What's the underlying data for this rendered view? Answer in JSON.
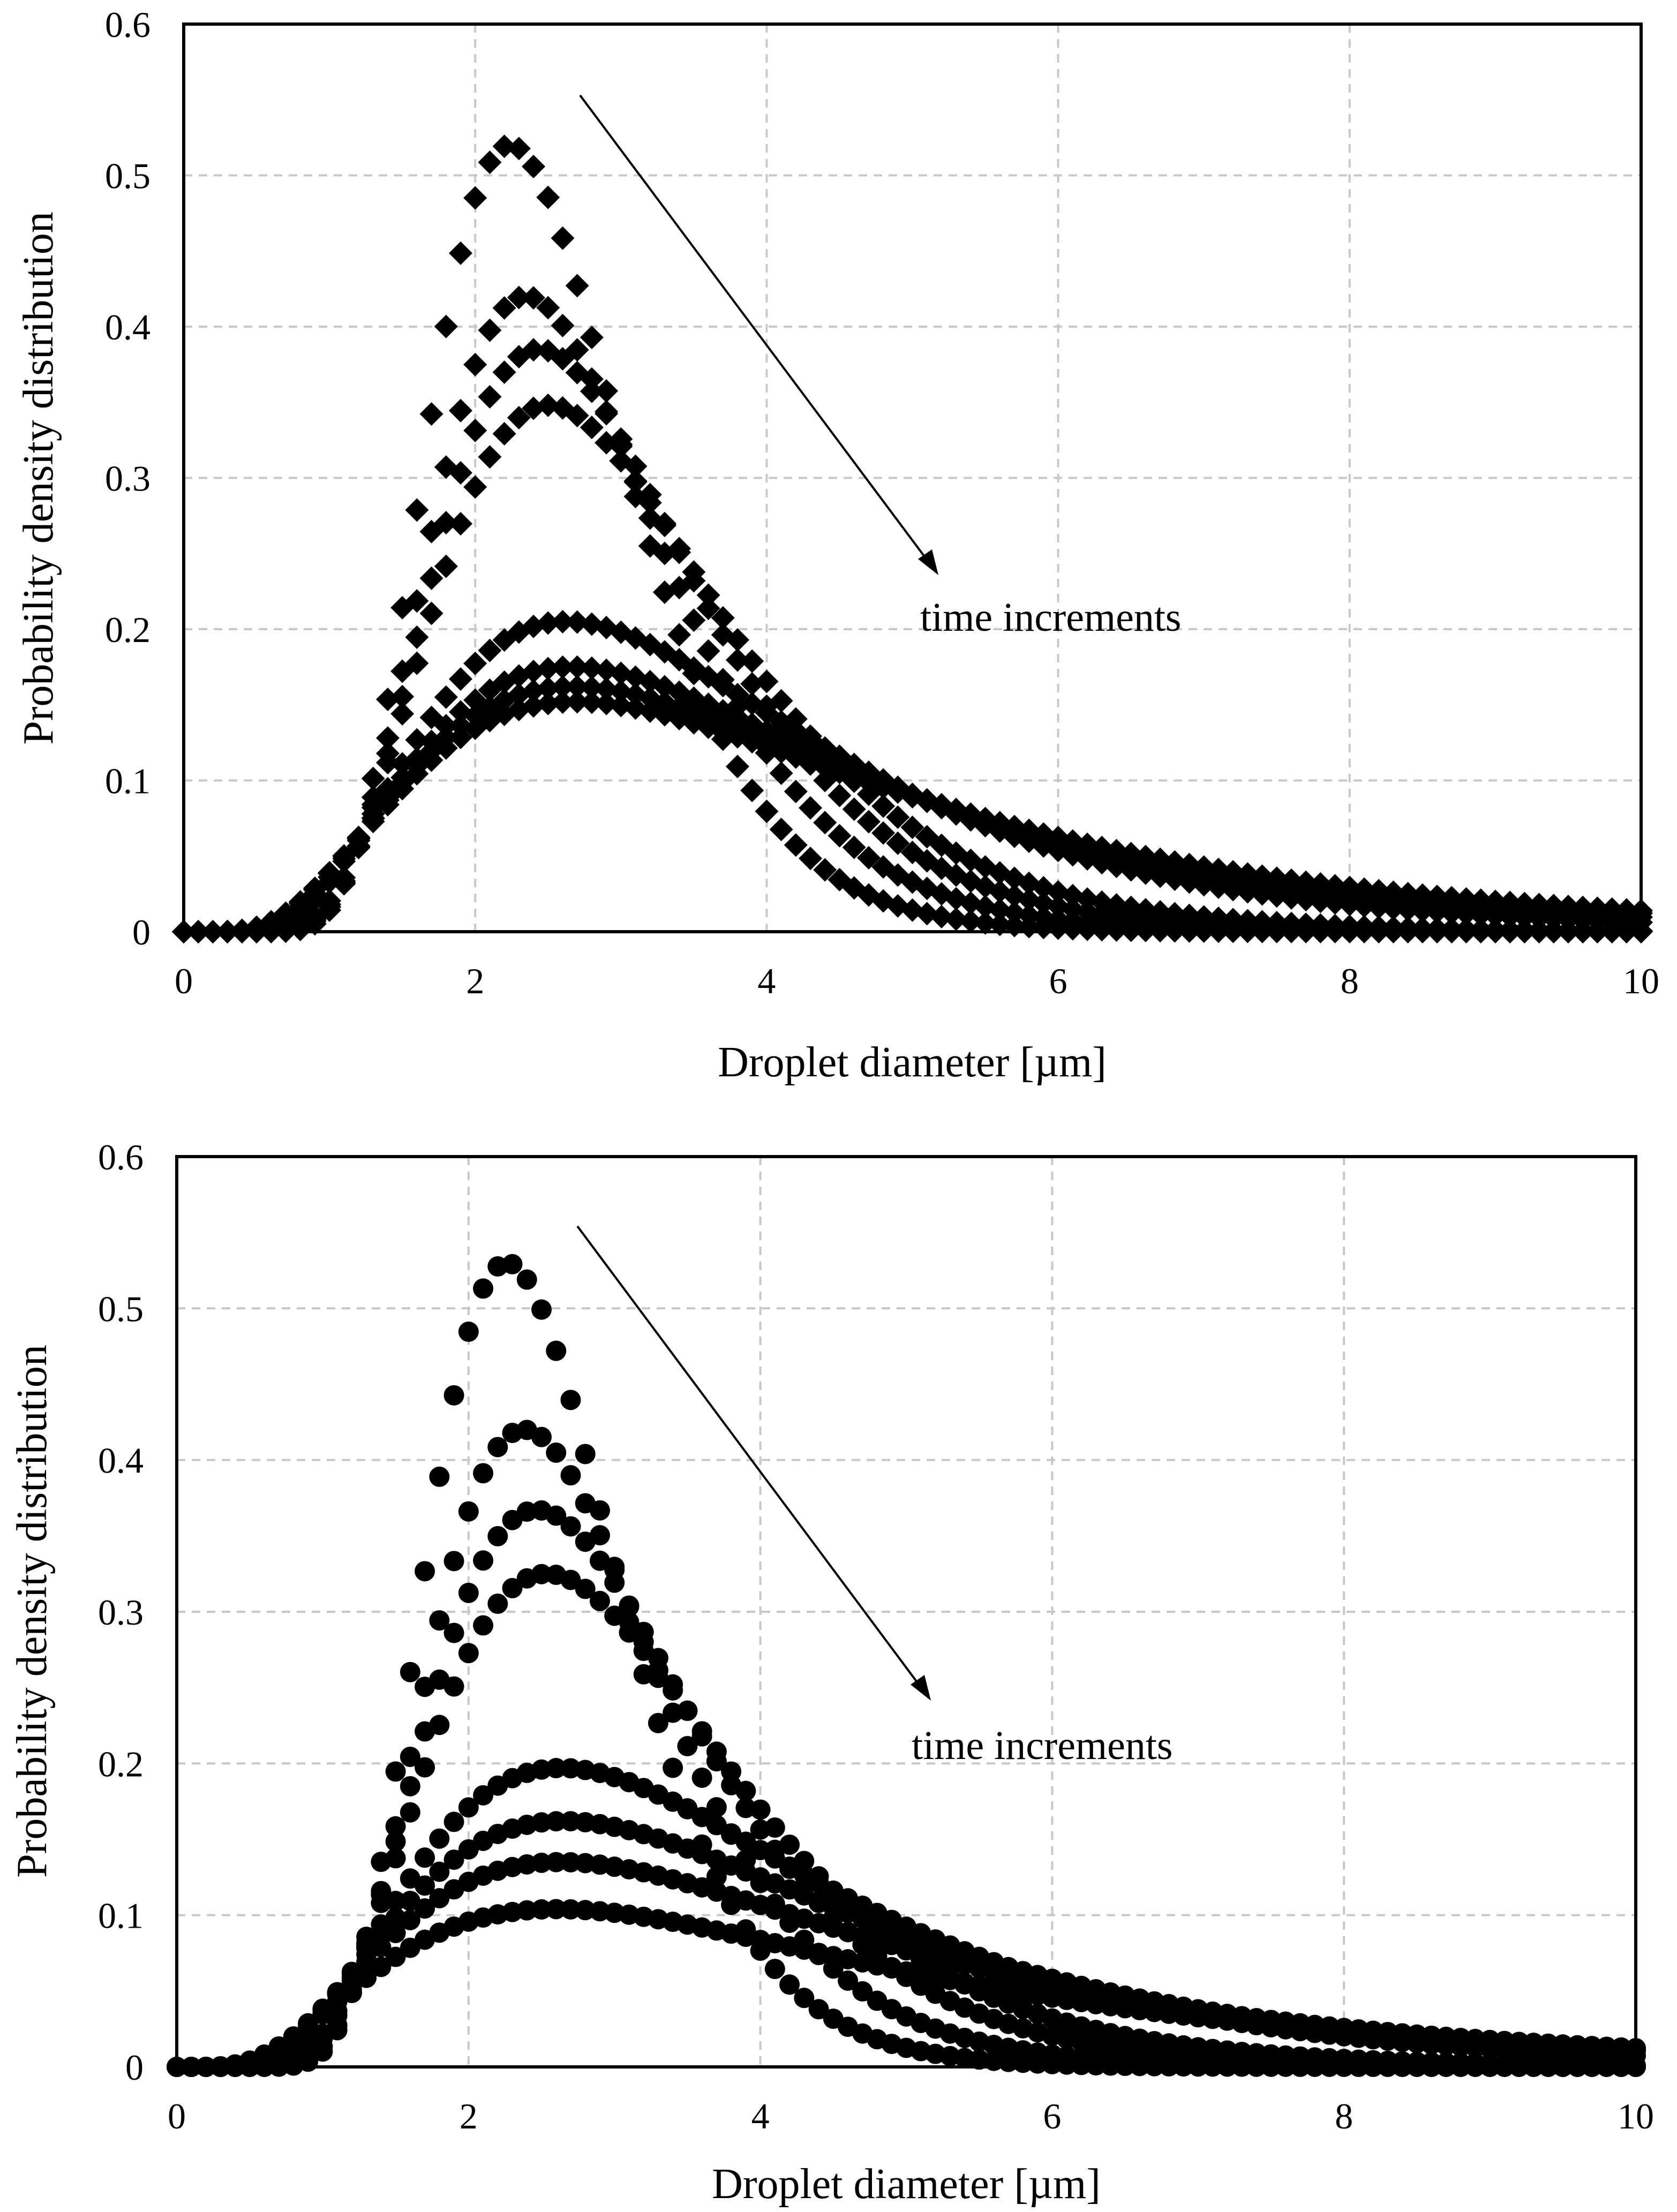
{
  "chart_data": [
    {
      "type": "scatter",
      "marker": "diamond",
      "xlabel": "Droplet diameter [µm]",
      "ylabel": "Probability density distribution",
      "xlim": [
        0,
        10
      ],
      "ylim": [
        0,
        0.6
      ],
      "xticks": [
        "0",
        "2",
        "4",
        "6",
        "8",
        "10"
      ],
      "yticks": [
        "0",
        "0.1",
        "0.2",
        "0.3",
        "0.4",
        "0.5",
        "0.6"
      ],
      "grid": true,
      "annotation": "time increments",
      "series_shape": [
        {
          "mu": 0.895,
          "sigma": 0.3,
          "peak": 0.52
        },
        {
          "mu": 0.965,
          "sigma": 0.335,
          "peak": 0.42
        },
        {
          "mu": 1.02,
          "sigma": 0.36,
          "peak": 0.385
        },
        {
          "mu": 1.065,
          "sigma": 0.385,
          "peak": 0.348
        },
        {
          "mu": 1.22,
          "sigma": 0.505,
          "peak": 0.205
        },
        {
          "mu": 1.28,
          "sigma": 0.55,
          "peak": 0.175
        },
        {
          "mu": 1.32,
          "sigma": 0.58,
          "peak": 0.162
        },
        {
          "mu": 1.35,
          "sigma": 0.6,
          "peak": 0.152
        }
      ]
    },
    {
      "type": "scatter",
      "marker": "circle",
      "xlabel": "Droplet diameter [µm]",
      "ylabel": "Probability density distribution",
      "xlim": [
        0,
        10
      ],
      "ylim": [
        0,
        0.6
      ],
      "xticks": [
        "0",
        "2",
        "4",
        "6",
        "8",
        "10"
      ],
      "yticks": [
        "0",
        "0.1",
        "0.2",
        "0.3",
        "0.4",
        "0.5",
        "0.6"
      ],
      "grid": true,
      "annotation": "time increments",
      "series_shape": [
        {
          "mu": 0.9,
          "sigma": 0.29,
          "peak": 0.53
        },
        {
          "mu": 0.975,
          "sigma": 0.33,
          "peak": 0.42
        },
        {
          "mu": 1.04,
          "sigma": 0.37,
          "peak": 0.367
        },
        {
          "mu": 1.09,
          "sigma": 0.4,
          "peak": 0.325
        },
        {
          "mu": 1.24,
          "sigma": 0.52,
          "peak": 0.197
        },
        {
          "mu": 1.3,
          "sigma": 0.57,
          "peak": 0.162
        },
        {
          "mu": 1.34,
          "sigma": 0.61,
          "peak": 0.135
        },
        {
          "mu": 1.38,
          "sigma": 0.65,
          "peak": 0.104
        }
      ]
    }
  ]
}
